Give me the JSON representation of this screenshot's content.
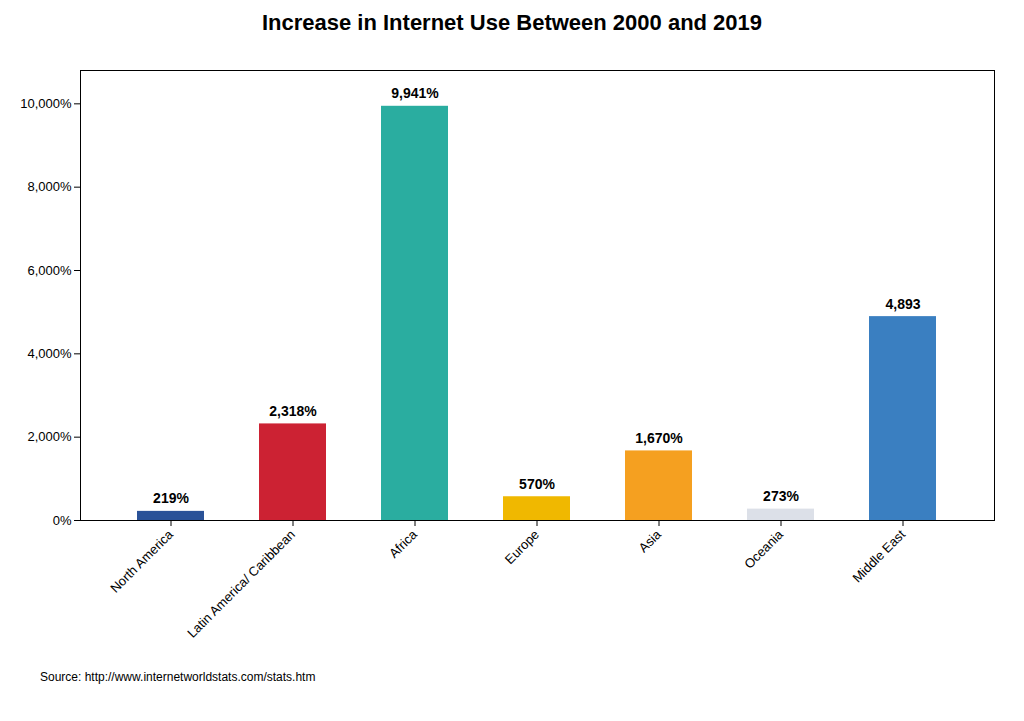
{
  "chart_data": {
    "type": "bar",
    "title": "Increase in Internet Use Between 2000 and 2019",
    "categories": [
      "North America",
      "Latin America/ Caribbean",
      "Africa",
      "Europe",
      "Asia",
      "Oceania",
      "Middle East"
    ],
    "values": [
      219,
      2318,
      9941,
      570,
      1670,
      273,
      4893
    ],
    "value_labels": [
      "219%",
      "2,318%",
      "9,941%",
      "570%",
      "1,670%",
      "273%",
      "4,893"
    ],
    "colors": [
      "#2a5298",
      "#cc2233",
      "#2aada0",
      "#f0b800",
      "#f5a020",
      "#dce0e8",
      "#3a7fc1"
    ],
    "ylim": [
      0,
      10800
    ],
    "yticks": [
      {
        "value": 0,
        "label": "0%"
      },
      {
        "value": 2000,
        "label": "2,000%"
      },
      {
        "value": 4000,
        "label": "4,000%"
      },
      {
        "value": 6000,
        "label": "6,000%"
      },
      {
        "value": 8000,
        "label": "8,000%"
      },
      {
        "value": 10000,
        "label": "10,000%"
      }
    ],
    "grid": false,
    "data_labels": true,
    "annotations": [
      "Source: http://www.internetworldstats.com/stats.htm"
    ]
  }
}
